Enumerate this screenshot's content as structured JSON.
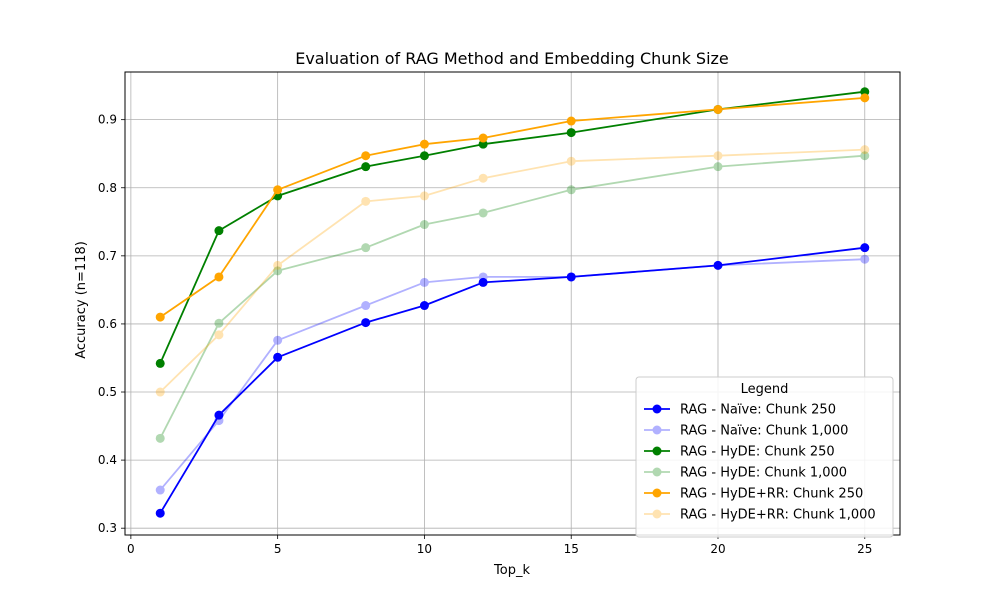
{
  "chart_data": {
    "type": "line",
    "title": "Evaluation of RAG Method and Embedding Chunk Size",
    "xlabel": "Top_k",
    "ylabel": "Accuracy (n=118)",
    "xlim": [
      -0.2,
      26.2
    ],
    "ylim": [
      0.29,
      0.97
    ],
    "xticks": [
      0,
      5,
      10,
      15,
      20,
      25
    ],
    "yticks": [
      0.3,
      0.4,
      0.5,
      0.6,
      0.7,
      0.8,
      0.9
    ],
    "grid": true,
    "legend_title": "Legend",
    "legend_position": "lower-right",
    "x": [
      1,
      3,
      5,
      8,
      10,
      12,
      15,
      20,
      25
    ],
    "series": [
      {
        "name": "RAG - Naïve: Chunk 250",
        "color": "#0000ff",
        "opacity": 1.0,
        "values": [
          0.322,
          0.466,
          0.551,
          0.602,
          0.627,
          0.661,
          0.669,
          0.686,
          0.712
        ]
      },
      {
        "name": "RAG - Naïve: Chunk 1,000",
        "color": "#0000ff",
        "opacity": 0.3,
        "values": [
          0.356,
          0.458,
          0.576,
          0.627,
          0.661,
          0.669,
          0.669,
          0.686,
          0.695
        ]
      },
      {
        "name": "RAG - HyDE: Chunk 250",
        "color": "#008000",
        "opacity": 1.0,
        "values": [
          0.542,
          0.737,
          0.788,
          0.831,
          0.847,
          0.864,
          0.881,
          0.915,
          0.941
        ]
      },
      {
        "name": "RAG - HyDE: Chunk 1,000",
        "color": "#008000",
        "opacity": 0.3,
        "values": [
          0.432,
          0.601,
          0.678,
          0.712,
          0.746,
          0.763,
          0.797,
          0.831,
          0.847
        ]
      },
      {
        "name": "RAG - HyDE+RR: Chunk 250",
        "color": "#ffa500",
        "opacity": 1.0,
        "values": [
          0.61,
          0.669,
          0.797,
          0.847,
          0.864,
          0.873,
          0.898,
          0.915,
          0.932
        ]
      },
      {
        "name": "RAG - HyDE+RR: Chunk 1,000",
        "color": "#ffa500",
        "opacity": 0.3,
        "values": [
          0.5,
          0.584,
          0.686,
          0.78,
          0.788,
          0.814,
          0.839,
          0.847,
          0.856
        ]
      }
    ]
  }
}
